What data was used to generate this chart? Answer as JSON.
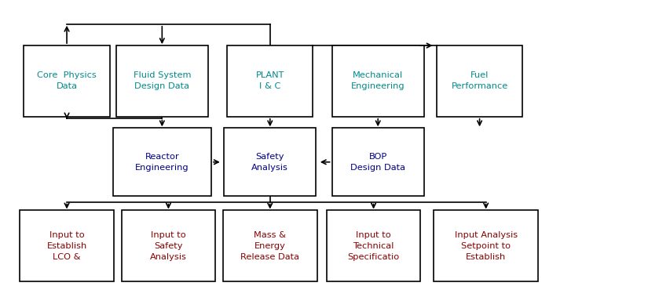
{
  "bg": "#ffffff",
  "lw": 1.2,
  "tc_top": "#008B8B",
  "tc_mid": "#00008B",
  "tc_bot": "#8B0000",
  "fs": 8.2,
  "TC": [
    0.095,
    0.245,
    0.415,
    0.585,
    0.745
  ],
  "TW": [
    0.135,
    0.145,
    0.135,
    0.145,
    0.135
  ],
  "TL": [
    "Core  Physics\nData",
    "Fluid System\nDesign Data",
    "PLANT\nI & C",
    "Mechanical\nEngineering",
    "Fuel\nPerformance"
  ],
  "T0": 0.6,
  "T1": 0.85,
  "MC": [
    0.245,
    0.415,
    0.585
  ],
  "MW": [
    0.155,
    0.145,
    0.145
  ],
  "ML": [
    "Reactor\nEngineering",
    "Safety\nAnalysis",
    "BOP\nDesign Data"
  ],
  "M0": 0.32,
  "M1": 0.56,
  "BC": [
    0.095,
    0.255,
    0.415,
    0.578,
    0.755
  ],
  "BW": [
    0.148,
    0.148,
    0.148,
    0.148,
    0.165
  ],
  "BL": [
    "Input to\nEstablish\nLCO &",
    "Input to\nSafety\nAnalysis",
    "Mass &\nEnergy\nRelease Data",
    "Input to\nTechnical\nSpecificatio",
    "Input Analysis\nSetpoint to\nEstablish"
  ],
  "B0": 0.02,
  "B1": 0.27,
  "HY": 0.925,
  "MHY": 0.595,
  "BHY": 0.3
}
